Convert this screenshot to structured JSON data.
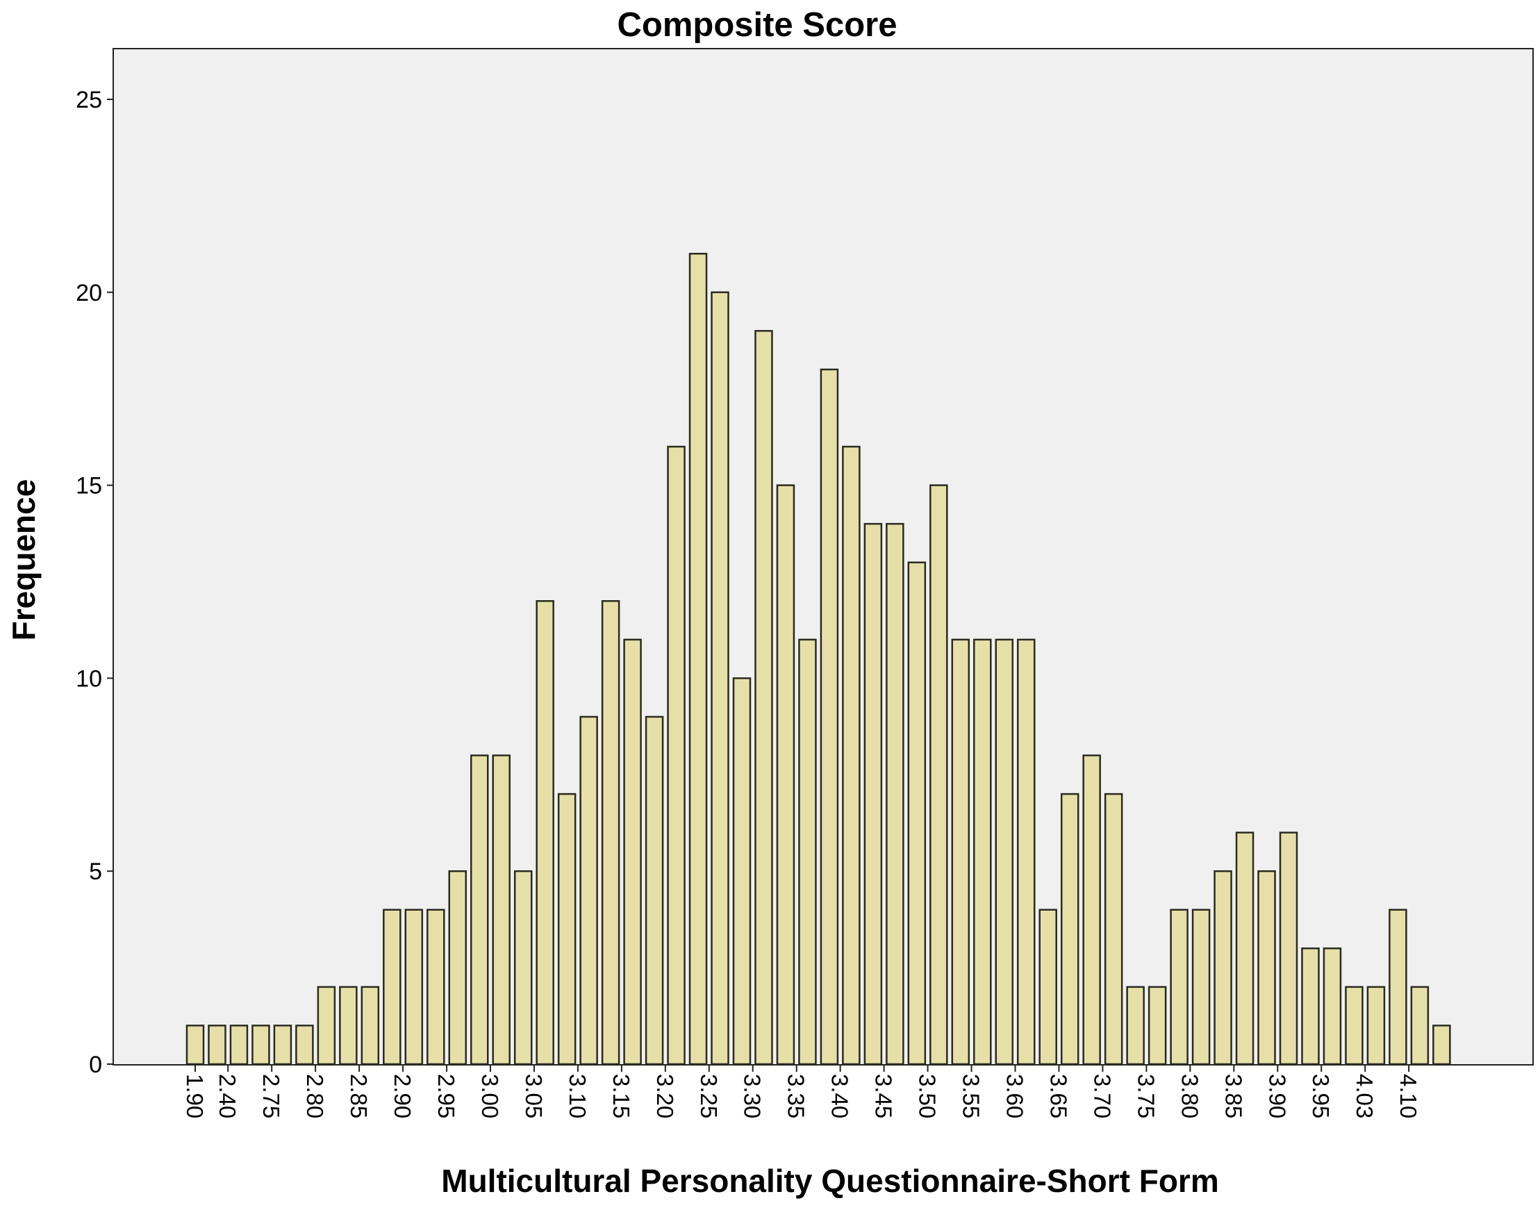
{
  "chart_data": {
    "type": "bar",
    "title": "Composite Score",
    "xlabel": "Multicultural Personality Questionnaire-Short Form",
    "ylabel": "Frequence",
    "ylim": [
      0,
      26
    ],
    "yticks": [
      0,
      5,
      10,
      15,
      20,
      25
    ],
    "grid": false,
    "legend": "none",
    "colors": {
      "bar_fill": "#e6e0a8",
      "bar_stroke": "#2a2a20",
      "plot_background": "#f0f0f0",
      "axis": "#222222"
    },
    "x_tick_labels": [
      {
        "label": "1.90",
        "bar_index": 0
      },
      {
        "label": "2.40",
        "bar_index": 1.5
      },
      {
        "label": "2.75",
        "bar_index": 3.5
      },
      {
        "label": "2.80",
        "bar_index": 5.5
      },
      {
        "label": "2.85",
        "bar_index": 7.5
      },
      {
        "label": "2.90",
        "bar_index": 9.5
      },
      {
        "label": "2.95",
        "bar_index": 11.5
      },
      {
        "label": "3.00",
        "bar_index": 13.5
      },
      {
        "label": "3.05",
        "bar_index": 15.5
      },
      {
        "label": "3.10",
        "bar_index": 17.5
      },
      {
        "label": "3.15",
        "bar_index": 19.5
      },
      {
        "label": "3.20",
        "bar_index": 21.5
      },
      {
        "label": "3.25",
        "bar_index": 23.5
      },
      {
        "label": "3.30",
        "bar_index": 25.5
      },
      {
        "label": "3.35",
        "bar_index": 27.5
      },
      {
        "label": "3.40",
        "bar_index": 29.5
      },
      {
        "label": "3.45",
        "bar_index": 31.5
      },
      {
        "label": "3.50",
        "bar_index": 33.5
      },
      {
        "label": "3.55",
        "bar_index": 35.5
      },
      {
        "label": "3.60",
        "bar_index": 37.5
      },
      {
        "label": "3.65",
        "bar_index": 39.5
      },
      {
        "label": "3.70",
        "bar_index": 41.5
      },
      {
        "label": "3.75",
        "bar_index": 43.5
      },
      {
        "label": "3.80",
        "bar_index": 45.5
      },
      {
        "label": "3.85",
        "bar_index": 47.5
      },
      {
        "label": "3.90",
        "bar_index": 49.5
      },
      {
        "label": "3.95",
        "bar_index": 51.5
      },
      {
        "label": "4.03",
        "bar_index": 53.5
      },
      {
        "label": "4.10",
        "bar_index": 55.5
      }
    ],
    "values": [
      1,
      1,
      1,
      1,
      1,
      1,
      2,
      2,
      2,
      4,
      4,
      4,
      5,
      8,
      8,
      5,
      12,
      7,
      9,
      12,
      11,
      9,
      16,
      21,
      20,
      10,
      19,
      15,
      11,
      18,
      16,
      14,
      14,
      13,
      15,
      11,
      11,
      11,
      11,
      4,
      7,
      8,
      7,
      2,
      2,
      4,
      4,
      5,
      6,
      5,
      6,
      3,
      3,
      2,
      2,
      4,
      2,
      1
    ]
  }
}
